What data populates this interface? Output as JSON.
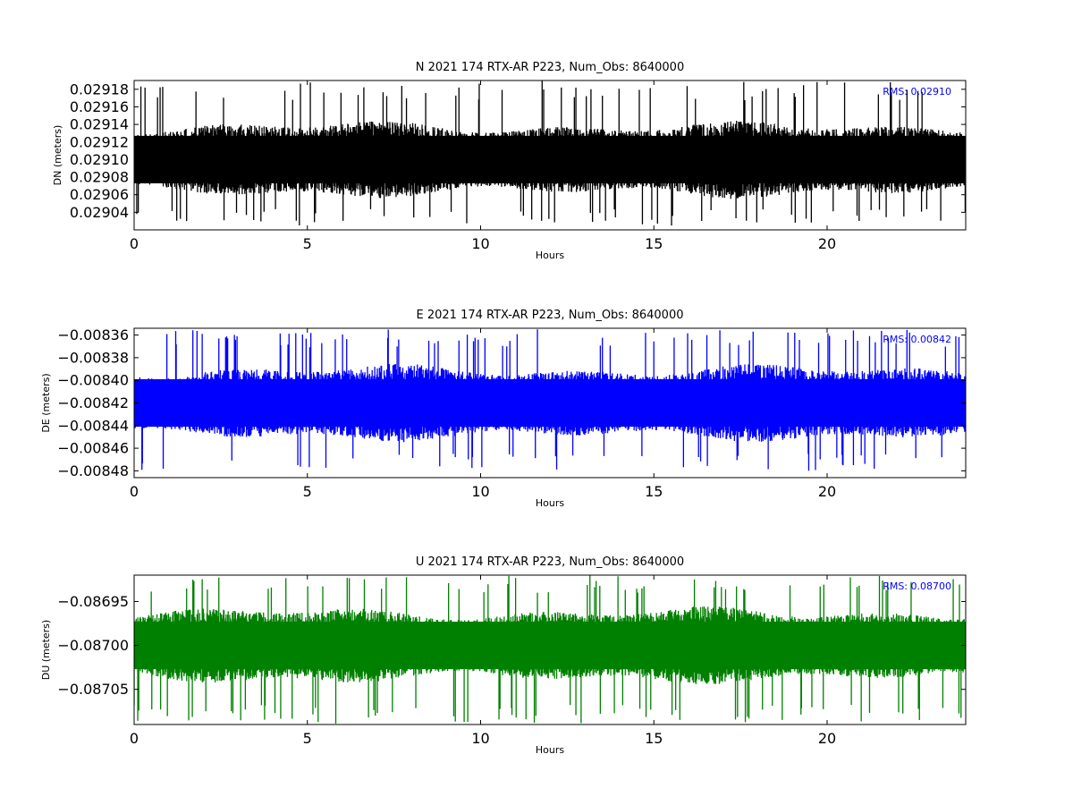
{
  "chart_data": [
    {
      "type": "line",
      "title": "N 2021 174 RTX-AR  P223, Num_Obs: 8640000",
      "xlabel": "Hours",
      "ylabel": "DN (meters)",
      "xlim": [
        0,
        24
      ],
      "ylim": [
        0.02902,
        0.02919
      ],
      "xticks": [
        0,
        5,
        10,
        15,
        20
      ],
      "xtick_labels": [
        "0",
        "5",
        "10",
        "15",
        "20"
      ],
      "yticks": [
        0.02904,
        0.02906,
        0.02908,
        0.0291,
        0.02912,
        0.02914,
        0.02916,
        0.02918
      ],
      "ytick_labels": [
        "0.02904",
        "0.02906",
        "0.02908",
        "0.02910",
        "0.02912",
        "0.02914",
        "0.02916",
        "0.02918"
      ],
      "color": "#000000",
      "annotation": "RMS:  0.02910",
      "annotation_color": "#0000ff",
      "series": [
        {
          "mean": 0.0291,
          "typical_range": [
            0.029055,
            0.029145
          ],
          "max": 0.02919,
          "min": 0.029025
        }
      ],
      "grid": false
    },
    {
      "type": "line",
      "title": "E 2021 174 RTX-AR  P223, Num_Obs: 8640000",
      "xlabel": "Hours",
      "ylabel": "DE (meters)",
      "xlim": [
        0,
        24
      ],
      "ylim": [
        -0.008486,
        -0.008354
      ],
      "xticks": [
        0,
        5,
        10,
        15,
        20
      ],
      "xtick_labels": [
        "0",
        "5",
        "10",
        "15",
        "20"
      ],
      "yticks": [
        -0.00848,
        -0.00846,
        -0.00844,
        -0.00842,
        -0.0084,
        -0.00838,
        -0.00836
      ],
      "ytick_labels": [
        "−0.00848",
        "−0.00846",
        "−0.00844",
        "−0.00842",
        "−0.00840",
        "−0.00838",
        "−0.00836"
      ],
      "color": "#0000ff",
      "annotation": "RMS:  0.00842",
      "annotation_color": "#0000ff",
      "series": [
        {
          "mean": -0.00842,
          "typical_range": [
            -0.008455,
            -0.008385
          ],
          "max": -0.008355,
          "min": -0.00848
        }
      ],
      "grid": false
    },
    {
      "type": "line",
      "title": "U 2021 174 RTX-AR  P223, Num_Obs: 8640000",
      "xlabel": "Hours",
      "ylabel": "DU (meters)",
      "xlim": [
        0,
        24
      ],
      "ylim": [
        -0.08709,
        -0.08692
      ],
      "xticks": [
        0,
        5,
        10,
        15,
        20
      ],
      "xtick_labels": [
        "0",
        "5",
        "10",
        "15",
        "20"
      ],
      "yticks": [
        -0.08705,
        -0.087,
        -0.08695
      ],
      "ytick_labels": [
        "−0.08705",
        "−0.08700",
        "−0.08695"
      ],
      "color": "#008000",
      "annotation": "RMS:  0.08700",
      "annotation_color": "#0000ff",
      "series": [
        {
          "mean": -0.087,
          "typical_range": [
            -0.087045,
            -0.086955
          ],
          "max": -0.08692,
          "min": -0.08709
        }
      ],
      "grid": false
    }
  ]
}
